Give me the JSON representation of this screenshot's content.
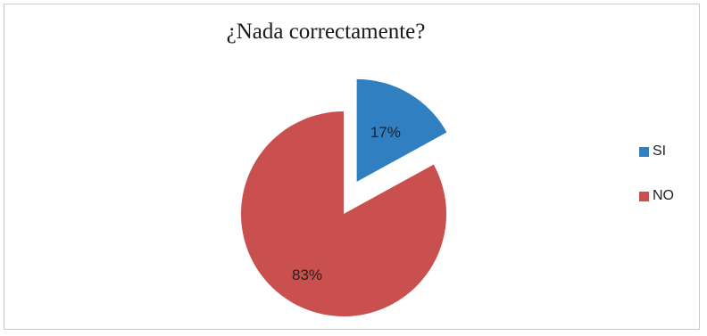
{
  "chart_data": {
    "type": "pie",
    "title": "¿Nada correctamente?",
    "categories": [
      "SI",
      "NO"
    ],
    "values": [
      17,
      83
    ],
    "labels": [
      "17%",
      "83%"
    ],
    "colors": [
      "#2f7fc1",
      "#c9504e"
    ],
    "exploded": [
      "SI"
    ],
    "legend_position": "right"
  }
}
